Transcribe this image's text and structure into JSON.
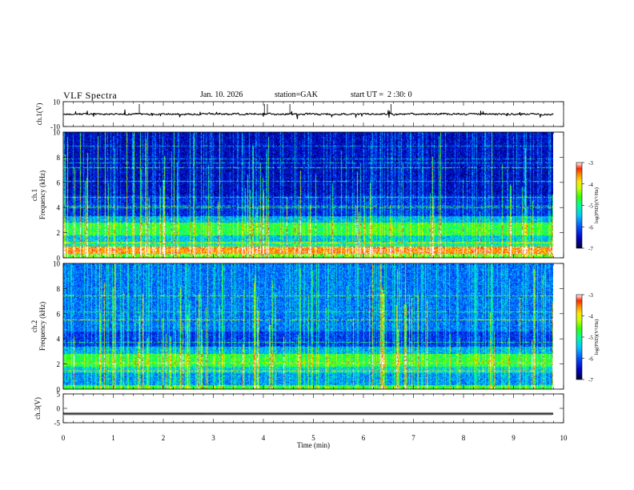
{
  "header": {
    "title": "VLF Spectra",
    "date": "Jan. 10. 2026",
    "station": "station=GAK",
    "start": "start UT =  2 :30: 0"
  },
  "colors": {
    "background": "#ffffff",
    "frame": "#000000",
    "colormap": [
      "#00003c",
      "#0000c8",
      "#0050ff",
      "#00c8ff",
      "#00ff96",
      "#32ff00",
      "#c8ff00",
      "#ffe600",
      "#ff8c00",
      "#ff2800",
      "#ffffff"
    ]
  },
  "chart_data": [
    {
      "type": "line",
      "name": "ch1-waveform",
      "ylabel": "ch.1(V)",
      "ylim": [
        -10,
        10
      ],
      "yticks": [
        "10",
        "-10"
      ],
      "xlim": [
        0,
        10
      ],
      "description_values": "continuous waveform near 0 V with small spikes",
      "baseline": 0
    },
    {
      "type": "heatmap",
      "name": "ch1-spectrogram",
      "ylabel_line1": "ch.1",
      "ylabel_line2": "Frequency (kHz)",
      "ylim": [
        0,
        10
      ],
      "yticks": [
        "0",
        "2",
        "4",
        "6",
        "8",
        "10"
      ],
      "xlim": [
        0,
        9.8
      ],
      "colorbar": {
        "label": "log(PSD)(V²/Hz)",
        "range": [
          -7,
          -3
        ],
        "ticks": [
          "-3",
          "-4",
          "-5",
          "-6",
          "-7"
        ]
      },
      "bands": [
        {
          "from_khz": 0.0,
          "to_khz": 0.3,
          "level": 0.6
        },
        {
          "from_khz": 0.3,
          "to_khz": 0.9,
          "level": 0.85
        },
        {
          "from_khz": 0.9,
          "to_khz": 1.3,
          "level": 0.45
        },
        {
          "from_khz": 1.3,
          "to_khz": 1.8,
          "level": 0.38
        },
        {
          "from_khz": 1.8,
          "to_khz": 2.8,
          "level": 0.55
        },
        {
          "from_khz": 2.8,
          "to_khz": 3.3,
          "level": 0.35
        },
        {
          "from_khz": 3.3,
          "to_khz": 5.0,
          "level": 0.18
        },
        {
          "from_khz": 5.0,
          "to_khz": 10.0,
          "level": 0.12
        }
      ]
    },
    {
      "type": "heatmap",
      "name": "ch2-spectrogram",
      "ylabel_line1": "ch.2",
      "ylabel_line2": "Frequency (kHz)",
      "ylim": [
        0,
        10
      ],
      "yticks": [
        "0",
        "2",
        "4",
        "6",
        "8",
        "10"
      ],
      "xlim": [
        0,
        9.8
      ],
      "colorbar": {
        "label": "log(PSD)(V²/Hz)",
        "range": [
          -7,
          -3
        ],
        "ticks": [
          "-3",
          "-4",
          "-5",
          "-6",
          "-7"
        ]
      },
      "bands": [
        {
          "from_khz": 0.0,
          "to_khz": 0.3,
          "level": 0.55
        },
        {
          "from_khz": 0.3,
          "to_khz": 1.3,
          "level": 0.32
        },
        {
          "from_khz": 1.3,
          "to_khz": 1.8,
          "level": 0.4
        },
        {
          "from_khz": 1.8,
          "to_khz": 2.8,
          "level": 0.55
        },
        {
          "from_khz": 2.8,
          "to_khz": 3.4,
          "level": 0.35
        },
        {
          "from_khz": 3.4,
          "to_khz": 4.6,
          "level": 0.2
        },
        {
          "from_khz": 4.6,
          "to_khz": 10.0,
          "level": 0.28
        }
      ]
    },
    {
      "type": "line",
      "name": "ch3-waveform",
      "ylabel": "ch.3(V)",
      "ylim": [
        -5,
        5
      ],
      "yticks": [
        "5",
        "0",
        "-5"
      ],
      "xlim": [
        0,
        10
      ],
      "baseline": -1.9
    }
  ],
  "xaxis": {
    "label": "Time  (min)",
    "range": [
      0,
      10
    ],
    "ticks": [
      "0",
      "1",
      "2",
      "3",
      "4",
      "5",
      "6",
      "7",
      "8",
      "9",
      "10"
    ]
  }
}
